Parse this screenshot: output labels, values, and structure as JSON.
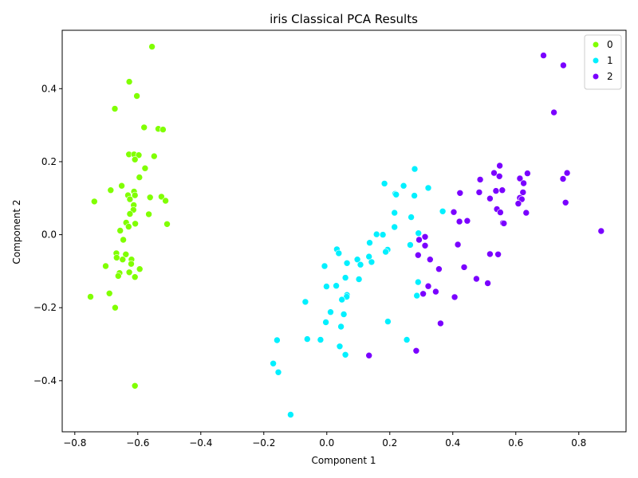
{
  "chart_data": {
    "type": "scatter",
    "title": "iris Classical PCA Results",
    "xlabel": "Component 1",
    "ylabel": "Component 2",
    "xlim": [
      -0.84,
      0.95
    ],
    "ylim": [
      -0.54,
      0.56
    ],
    "x_ticks": [
      -0.8,
      -0.6,
      -0.4,
      -0.2,
      0.0,
      0.2,
      0.4,
      0.6,
      0.8
    ],
    "y_ticks": [
      -0.4,
      -0.2,
      0.0,
      0.2,
      0.4
    ],
    "x_tick_labels": [
      "−0.8",
      "−0.6",
      "−0.4",
      "−0.2",
      "0.0",
      "0.2",
      "0.4",
      "0.6",
      "0.8"
    ],
    "y_tick_labels": [
      "−0.4",
      "−0.2",
      "0.0",
      "0.2",
      "0.4"
    ],
    "grid": false,
    "legend_position": "top-right",
    "series": [
      {
        "name": "0",
        "color": "#80ff00",
        "points": [
          [
            -0.555,
            0.515
          ],
          [
            -0.627,
            0.419
          ],
          [
            -0.603,
            0.38
          ],
          [
            -0.673,
            0.345
          ],
          [
            -0.58,
            0.294
          ],
          [
            -0.535,
            0.29
          ],
          [
            -0.52,
            0.288
          ],
          [
            -0.628,
            0.22
          ],
          [
            -0.612,
            0.22
          ],
          [
            -0.597,
            0.218
          ],
          [
            -0.548,
            0.215
          ],
          [
            -0.609,
            0.206
          ],
          [
            -0.577,
            0.182
          ],
          [
            -0.595,
            0.157
          ],
          [
            -0.651,
            0.134
          ],
          [
            -0.686,
            0.122
          ],
          [
            -0.612,
            0.118
          ],
          [
            -0.631,
            0.108
          ],
          [
            -0.609,
            0.108
          ],
          [
            -0.525,
            0.104
          ],
          [
            -0.561,
            0.102
          ],
          [
            -0.625,
            0.097
          ],
          [
            -0.512,
            0.093
          ],
          [
            -0.738,
            0.091
          ],
          [
            -0.613,
            0.081
          ],
          [
            -0.614,
            0.068
          ],
          [
            -0.625,
            0.057
          ],
          [
            -0.565,
            0.056
          ],
          [
            -0.637,
            0.033
          ],
          [
            -0.608,
            0.03
          ],
          [
            -0.507,
            0.029
          ],
          [
            -0.629,
            0.022
          ],
          [
            -0.656,
            0.011
          ],
          [
            -0.646,
            -0.014
          ],
          [
            -0.668,
            -0.051
          ],
          [
            -0.638,
            -0.054
          ],
          [
            -0.667,
            -0.063
          ],
          [
            -0.648,
            -0.068
          ],
          [
            -0.62,
            -0.068
          ],
          [
            -0.621,
            -0.08
          ],
          [
            -0.702,
            -0.086
          ],
          [
            -0.594,
            -0.094
          ],
          [
            -0.627,
            -0.103
          ],
          [
            -0.658,
            -0.105
          ],
          [
            -0.662,
            -0.113
          ],
          [
            -0.609,
            -0.116
          ],
          [
            -0.69,
            -0.161
          ],
          [
            -0.75,
            -0.17
          ],
          [
            -0.672,
            -0.2
          ],
          [
            -0.609,
            -0.414
          ]
        ]
      },
      {
        "name": "1",
        "color": "#00f0ff",
        "points": [
          [
            0.279,
            0.18
          ],
          [
            0.183,
            0.14
          ],
          [
            0.244,
            0.134
          ],
          [
            0.322,
            0.128
          ],
          [
            0.217,
            0.112
          ],
          [
            0.22,
            0.11
          ],
          [
            0.278,
            0.107
          ],
          [
            0.368,
            0.064
          ],
          [
            0.215,
            0.06
          ],
          [
            0.268,
            0.048
          ],
          [
            0.215,
            0.021
          ],
          [
            0.291,
            0.004
          ],
          [
            0.158,
            0.001
          ],
          [
            0.178,
            0.0
          ],
          [
            0.136,
            -0.022
          ],
          [
            0.265,
            -0.028
          ],
          [
            0.193,
            -0.041
          ],
          [
            0.032,
            -0.04
          ],
          [
            0.187,
            -0.047
          ],
          [
            0.038,
            -0.051
          ],
          [
            0.134,
            -0.06
          ],
          [
            0.097,
            -0.068
          ],
          [
            0.142,
            -0.075
          ],
          [
            0.064,
            -0.078
          ],
          [
            0.107,
            -0.082
          ],
          [
            -0.007,
            -0.086
          ],
          [
            0.059,
            -0.118
          ],
          [
            0.102,
            -0.122
          ],
          [
            0.29,
            -0.13
          ],
          [
            -0.001,
            -0.142
          ],
          [
            0.03,
            -0.14
          ],
          [
            0.064,
            -0.165
          ],
          [
            0.286,
            -0.167
          ],
          [
            0.063,
            -0.17
          ],
          [
            0.048,
            -0.178
          ],
          [
            -0.068,
            -0.184
          ],
          [
            0.012,
            -0.212
          ],
          [
            0.054,
            -0.218
          ],
          [
            0.194,
            -0.238
          ],
          [
            -0.003,
            -0.24
          ],
          [
            0.045,
            -0.252
          ],
          [
            -0.062,
            -0.286
          ],
          [
            -0.02,
            -0.288
          ],
          [
            0.254,
            -0.288
          ],
          [
            -0.158,
            -0.289
          ],
          [
            0.041,
            -0.306
          ],
          [
            0.059,
            -0.329
          ],
          [
            -0.17,
            -0.353
          ],
          [
            -0.154,
            -0.377
          ],
          [
            -0.115,
            -0.493
          ]
        ]
      },
      {
        "name": "2",
        "color": "#7a00ff",
        "points": [
          [
            0.688,
            0.491
          ],
          [
            0.751,
            0.464
          ],
          [
            0.721,
            0.335
          ],
          [
            0.549,
            0.189
          ],
          [
            0.531,
            0.169
          ],
          [
            0.637,
            0.168
          ],
          [
            0.763,
            0.169
          ],
          [
            0.548,
            0.16
          ],
          [
            0.613,
            0.154
          ],
          [
            0.75,
            0.153
          ],
          [
            0.487,
            0.151
          ],
          [
            0.625,
            0.141
          ],
          [
            0.557,
            0.122
          ],
          [
            0.537,
            0.12
          ],
          [
            0.484,
            0.116
          ],
          [
            0.623,
            0.116
          ],
          [
            0.423,
            0.114
          ],
          [
            0.613,
            0.101
          ],
          [
            0.518,
            0.099
          ],
          [
            0.619,
            0.097
          ],
          [
            0.608,
            0.085
          ],
          [
            0.758,
            0.088
          ],
          [
            0.54,
            0.07
          ],
          [
            0.551,
            0.061
          ],
          [
            0.403,
            0.062
          ],
          [
            0.633,
            0.06
          ],
          [
            0.446,
            0.038
          ],
          [
            0.421,
            0.036
          ],
          [
            0.559,
            0.032
          ],
          [
            0.871,
            0.01
          ],
          [
            0.312,
            -0.006
          ],
          [
            0.293,
            -0.014
          ],
          [
            0.416,
            -0.027
          ],
          [
            0.312,
            -0.03
          ],
          [
            0.518,
            -0.053
          ],
          [
            0.544,
            -0.054
          ],
          [
            0.29,
            -0.056
          ],
          [
            0.328,
            -0.068
          ],
          [
            0.436,
            -0.089
          ],
          [
            0.356,
            -0.094
          ],
          [
            0.475,
            -0.121
          ],
          [
            0.511,
            -0.133
          ],
          [
            0.322,
            -0.141
          ],
          [
            0.346,
            -0.156
          ],
          [
            0.306,
            -0.162
          ],
          [
            0.406,
            -0.171
          ],
          [
            0.361,
            -0.243
          ],
          [
            0.284,
            -0.318
          ],
          [
            0.134,
            -0.331
          ],
          [
            0.562,
            0.031
          ]
        ]
      }
    ]
  }
}
